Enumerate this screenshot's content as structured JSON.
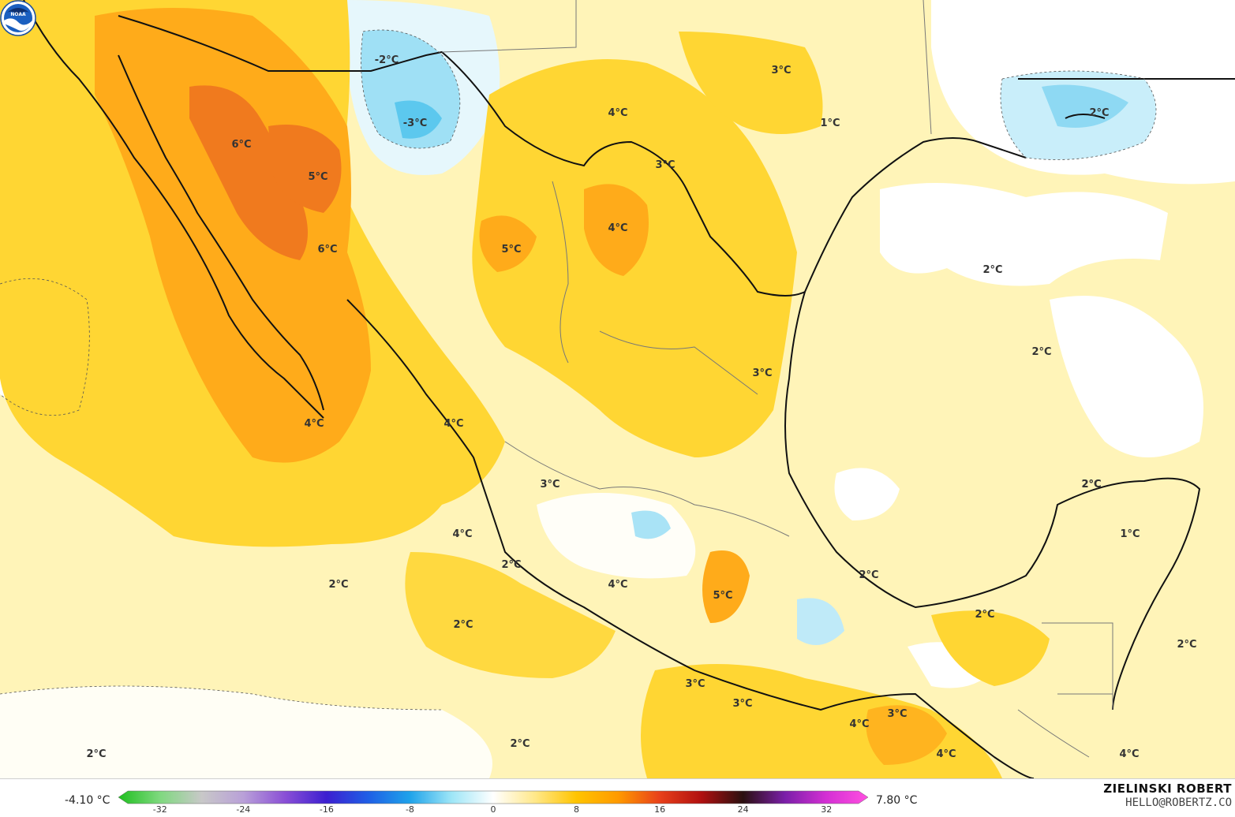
{
  "map": {
    "labels": [
      {
        "text": "-2°C"
      },
      {
        "text": "-3°C"
      },
      {
        "text": "6°C"
      },
      {
        "text": "5°C"
      },
      {
        "text": "6°C"
      },
      {
        "text": "5°C"
      },
      {
        "text": "4°C"
      },
      {
        "text": "4°C"
      },
      {
        "text": "4°C"
      },
      {
        "text": "3°C"
      },
      {
        "text": "3°C"
      },
      {
        "text": "1°C"
      },
      {
        "text": "2°C"
      },
      {
        "text": "2°C"
      },
      {
        "text": "3°C"
      },
      {
        "text": "4°C"
      },
      {
        "text": "4°C"
      },
      {
        "text": "2°C"
      },
      {
        "text": "3°C"
      },
      {
        "text": "2°C"
      },
      {
        "text": "2°C"
      },
      {
        "text": "4°C"
      },
      {
        "text": "5°C"
      },
      {
        "text": "2°C"
      },
      {
        "text": "2°C"
      },
      {
        "text": "2°C"
      },
      {
        "text": "1°C"
      },
      {
        "text": "2°C"
      },
      {
        "text": "2°C"
      },
      {
        "text": "2°C"
      },
      {
        "text": "3°C"
      },
      {
        "text": "3°C"
      },
      {
        "text": "4°C"
      },
      {
        "text": "3°C"
      },
      {
        "text": "4°C"
      },
      {
        "text": "2°C"
      },
      {
        "text": "2°C"
      },
      {
        "text": "4°C"
      }
    ]
  },
  "colorbar": {
    "min_label": "-4.10 °C",
    "max_label": "7.80 °C",
    "ticks": [
      "-32",
      "-24",
      "-16",
      "-8",
      "0",
      "8",
      "16",
      "24",
      "32"
    ],
    "colors": [
      "#1fbf1f",
      "#7fd97f",
      "#c8c8c8",
      "#b9a0d8",
      "#8a4fd6",
      "#3c1fd0",
      "#1f5fe6",
      "#1fa3ea",
      "#9ee6f7",
      "#ffffff",
      "#ffe88a",
      "#ffc400",
      "#ff9a00",
      "#e8401a",
      "#b01010",
      "#2a1010",
      "#7a1fa8",
      "#d42fd4",
      "#ff4fe0"
    ]
  },
  "credit": {
    "name": "ZIELINSKI ROBERT",
    "email": "HELLO@ROBERTZ.CO"
  },
  "logo": {
    "text": "NOAA",
    "icon": "noaa-logo"
  }
}
